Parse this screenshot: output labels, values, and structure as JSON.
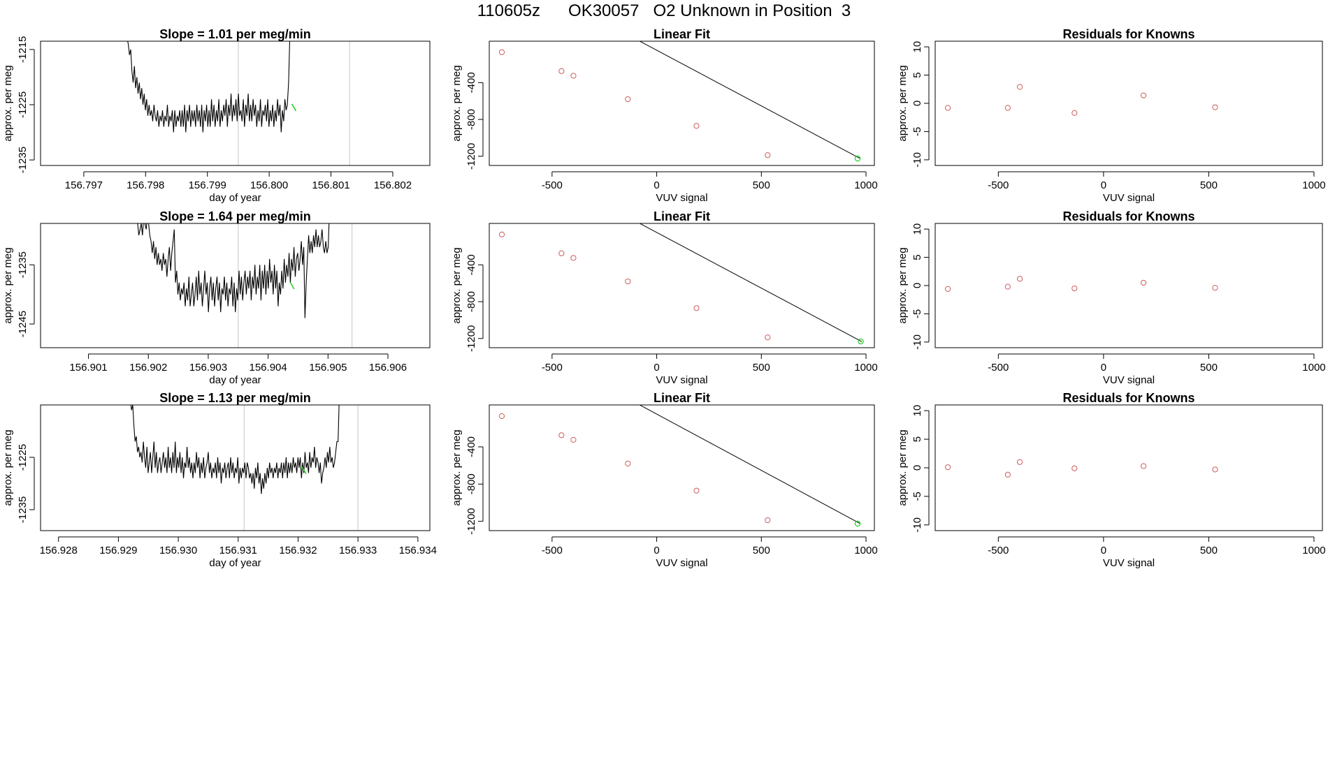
{
  "figure_title": "110605z      OK30057   O2 Unknown in Position  3",
  "colors": {
    "trace": "#000000",
    "marker_known": "#cd5c5c",
    "marker_unknown": "#22cc22",
    "vline": "#cfcfcf"
  },
  "chart_data": [
    {
      "type": "line",
      "title": "Slope =  1.01  per meg/min",
      "xlabel": "day of year",
      "ylabel": "approx. per meg",
      "xlim": [
        156.7963,
        156.8026
      ],
      "ylim": [
        -1236,
        -1213.5
      ],
      "xticks": [
        156.797,
        156.798,
        156.799,
        156.8,
        156.801,
        156.802
      ],
      "xtick_labels": [
        "156.797",
        "156.798",
        "156.799",
        "156.800",
        "156.801",
        "156.802"
      ],
      "yticks": [
        -1215,
        -1225,
        -1235
      ],
      "ytick_labels": [
        "-1215",
        "-1225",
        "-1235"
      ],
      "vlines": [
        156.7995,
        156.8013
      ],
      "unknown_point": {
        "x": 156.8004,
        "y": -1225.5
      },
      "series": [
        {
          "name": "trace",
          "x0": 156.7977,
          "dx": 1.98e-05,
          "values": [
            -1213,
            -1214,
            -1216,
            -1215,
            -1219,
            -1221,
            -1218,
            -1222,
            -1220,
            -1223,
            -1221,
            -1224,
            -1222,
            -1225,
            -1223,
            -1226,
            -1224,
            -1227,
            -1225,
            -1227,
            -1226,
            -1228,
            -1225,
            -1227,
            -1228,
            -1226,
            -1229,
            -1227,
            -1228,
            -1226,
            -1229,
            -1227,
            -1228,
            -1225,
            -1229,
            -1227,
            -1228,
            -1226,
            -1230,
            -1226,
            -1229,
            -1227,
            -1228,
            -1226,
            -1229,
            -1226,
            -1229,
            -1225,
            -1230,
            -1226,
            -1228,
            -1225,
            -1229,
            -1226,
            -1228,
            -1226,
            -1229,
            -1225,
            -1228,
            -1226,
            -1229,
            -1225,
            -1230,
            -1226,
            -1228,
            -1225,
            -1229,
            -1226,
            -1229,
            -1224,
            -1228,
            -1225,
            -1229,
            -1226,
            -1228,
            -1224,
            -1229,
            -1226,
            -1228,
            -1225,
            -1227,
            -1224,
            -1229,
            -1225,
            -1227,
            -1223,
            -1228,
            -1225,
            -1227,
            -1224,
            -1228,
            -1223,
            -1227,
            -1226,
            -1228,
            -1224,
            -1229,
            -1225,
            -1227,
            -1223,
            -1228,
            -1225,
            -1228,
            -1224,
            -1227,
            -1225,
            -1229,
            -1226,
            -1228,
            -1224,
            -1229,
            -1226,
            -1227,
            -1225,
            -1228,
            -1224,
            -1229,
            -1226,
            -1228,
            -1225,
            -1229,
            -1226,
            -1228,
            -1224,
            -1227,
            -1225,
            -1230,
            -1226,
            -1228,
            -1224,
            -1226,
            -1225,
            -1221,
            -1213
          ]
        }
      ]
    },
    {
      "type": "scatter",
      "title": "Linear Fit",
      "xlabel": "VUV signal",
      "ylabel": "approx. per meg",
      "xlim": [
        -800,
        1040
      ],
      "ylim": [
        -1300,
        50
      ],
      "xticks": [
        -500,
        0,
        500,
        1000
      ],
      "xtick_labels": [
        "-500",
        "0",
        "500",
        "1000"
      ],
      "yticks": [
        -400,
        -800,
        -1200
      ],
      "ytick_labels": [
        "-400",
        "-800",
        "-1200"
      ],
      "fit_line": {
        "x": [
          -740,
          970
        ],
        "y": 0,
        "slope": -1.21,
        "intercept": -48
      },
      "known_points": {
        "x": [
          -740,
          -455,
          -398,
          -138,
          190,
          530
        ],
        "y": [
          -70,
          -275,
          -325,
          -580,
          -870,
          -1188
        ]
      },
      "unknown_point": {
        "x": 960,
        "y": -1225
      }
    },
    {
      "type": "scatter",
      "title": "Residuals for Knowns",
      "xlabel": "VUV signal",
      "ylabel": "approx. per meg",
      "xlim": [
        -800,
        1040
      ],
      "ylim": [
        -11,
        11
      ],
      "xticks": [
        -500,
        0,
        500,
        1000
      ],
      "xtick_labels": [
        "-500",
        "0",
        "500",
        "1000"
      ],
      "yticks": [
        10,
        5,
        0,
        -5,
        -10
      ],
      "ytick_labels": [
        "10",
        "5",
        "0",
        "-5",
        "-10"
      ],
      "points": {
        "x": [
          -740,
          -455,
          -398,
          -138,
          190,
          530
        ],
        "y": [
          -0.8,
          -0.8,
          2.9,
          -1.7,
          1.4,
          -0.7
        ]
      }
    },
    {
      "type": "line",
      "title": "Slope =  1.64  per meg/min",
      "xlabel": "day of year",
      "ylabel": "approx. per meg",
      "xlim": [
        156.9002,
        156.9067
      ],
      "ylim": [
        -1249,
        -1228
      ],
      "xticks": [
        156.901,
        156.902,
        156.903,
        156.904,
        156.905,
        156.906
      ],
      "xtick_labels": [
        "156.901",
        "156.902",
        "156.903",
        "156.904",
        "156.905",
        "156.906"
      ],
      "yticks": [
        -1235,
        -1245
      ],
      "ytick_labels": [
        "-1235",
        "-1245"
      ],
      "vlines": [
        156.9035,
        156.9054
      ],
      "unknown_point": {
        "x": 156.9044,
        "y": -1238.5
      },
      "series": [
        {
          "name": "trace",
          "x0": 156.9018,
          "dx": 2.04e-05,
          "values": [
            -1227,
            -1228,
            -1230,
            -1229,
            -1228,
            -1230,
            -1227,
            -1228,
            -1229,
            -1227,
            -1228,
            -1230,
            -1231,
            -1233,
            -1231,
            -1234,
            -1232,
            -1235,
            -1233,
            -1235,
            -1234,
            -1236,
            -1233,
            -1235,
            -1234,
            -1237,
            -1234,
            -1232,
            -1236,
            -1233,
            -1231,
            -1229,
            -1238,
            -1236,
            -1240,
            -1238,
            -1241,
            -1239,
            -1240,
            -1238,
            -1242,
            -1239,
            -1241,
            -1237,
            -1242,
            -1240,
            -1238,
            -1242,
            -1240,
            -1237,
            -1241,
            -1236,
            -1240,
            -1238,
            -1242,
            -1239,
            -1236,
            -1240,
            -1238,
            -1243,
            -1239,
            -1237,
            -1241,
            -1238,
            -1242,
            -1239,
            -1237,
            -1241,
            -1238,
            -1243,
            -1239,
            -1240,
            -1237,
            -1241,
            -1238,
            -1242,
            -1239,
            -1240,
            -1237,
            -1242,
            -1238,
            -1243,
            -1239,
            -1241,
            -1236,
            -1240,
            -1237,
            -1241,
            -1238,
            -1236,
            -1240,
            -1237,
            -1239,
            -1236,
            -1241,
            -1237,
            -1239,
            -1235,
            -1240,
            -1237,
            -1239,
            -1235,
            -1241,
            -1236,
            -1239,
            -1235,
            -1240,
            -1236,
            -1239,
            -1234,
            -1238,
            -1236,
            -1240,
            -1235,
            -1239,
            -1236,
            -1242,
            -1238,
            -1240,
            -1236,
            -1239,
            -1234,
            -1238,
            -1235,
            -1237,
            -1233,
            -1238,
            -1234,
            -1236,
            -1232,
            -1237,
            -1234,
            -1233,
            -1236,
            -1234,
            -1231,
            -1235,
            -1232,
            -1244,
            -1238,
            -1234,
            -1230,
            -1233,
            -1231,
            -1233,
            -1230,
            -1232,
            -1229,
            -1232,
            -1230,
            -1232,
            -1231,
            -1229,
            -1232,
            -1233,
            -1231,
            -1233,
            -1232,
            -1226
          ]
        }
      ]
    },
    {
      "type": "scatter",
      "title": "Linear Fit",
      "xlabel": "VUV signal",
      "ylabel": "approx. per meg",
      "xlim": [
        -800,
        1040
      ],
      "ylim": [
        -1300,
        50
      ],
      "xticks": [
        -500,
        0,
        500,
        1000
      ],
      "xtick_labels": [
        "-500",
        "0",
        "500",
        "1000"
      ],
      "yticks": [
        -400,
        -800,
        -1200
      ],
      "ytick_labels": [
        "-400",
        "-800",
        "-1200"
      ],
      "fit_line": {
        "x": [
          -740,
          980
        ],
        "y": 0,
        "slope": -1.21,
        "intercept": -48
      },
      "known_points": {
        "x": [
          -740,
          -455,
          -398,
          -138,
          190,
          530
        ],
        "y": [
          -70,
          -275,
          -325,
          -580,
          -870,
          -1188
        ]
      },
      "unknown_point": {
        "x": 975,
        "y": -1232
      }
    },
    {
      "type": "scatter",
      "title": "Residuals for Knowns",
      "xlabel": "VUV signal",
      "ylabel": "approx. per meg",
      "xlim": [
        -800,
        1040
      ],
      "ylim": [
        -11,
        11
      ],
      "xticks": [
        -500,
        0,
        500,
        1000
      ],
      "xtick_labels": [
        "-500",
        "0",
        "500",
        "1000"
      ],
      "yticks": [
        10,
        5,
        0,
        -5,
        -10
      ],
      "ytick_labels": [
        "10",
        "5",
        "0",
        "-5",
        "-10"
      ],
      "points": {
        "x": [
          -740,
          -455,
          -398,
          -138,
          190,
          530
        ],
        "y": [
          -0.6,
          -0.2,
          1.2,
          -0.5,
          0.5,
          -0.4
        ]
      }
    },
    {
      "type": "line",
      "title": "Slope =  1.13  per meg/min",
      "xlabel": "day of year",
      "ylabel": "approx. per meg",
      "xlim": [
        156.9277,
        156.9342
      ],
      "ylim": [
        -1239,
        -1215
      ],
      "xticks": [
        156.928,
        156.929,
        156.93,
        156.931,
        156.932,
        156.933,
        156.934
      ],
      "xtick_labels": [
        "156.928",
        "156.929",
        "156.930",
        "156.931",
        "156.932",
        "156.933",
        "156.934"
      ],
      "yticks": [
        -1225,
        -1235
      ],
      "ytick_labels": [
        "-1225",
        "-1235"
      ],
      "vlines": [
        156.9311,
        156.933
      ],
      "unknown_point": {
        "x": 156.9321,
        "y": -1227.5
      },
      "series": [
        {
          "name": "trace",
          "x0": 156.9292,
          "dx": 1.97e-05,
          "values": [
            -1214,
            -1216,
            -1215,
            -1219,
            -1222,
            -1221,
            -1224,
            -1223,
            -1225,
            -1224,
            -1226,
            -1222,
            -1225,
            -1227,
            -1223,
            -1228,
            -1226,
            -1224,
            -1228,
            -1225,
            -1222,
            -1227,
            -1224,
            -1228,
            -1226,
            -1225,
            -1228,
            -1226,
            -1224,
            -1227,
            -1225,
            -1228,
            -1223,
            -1227,
            -1225,
            -1228,
            -1224,
            -1227,
            -1222,
            -1228,
            -1225,
            -1227,
            -1224,
            -1228,
            -1225,
            -1229,
            -1226,
            -1227,
            -1223,
            -1227,
            -1225,
            -1228,
            -1226,
            -1229,
            -1226,
            -1228,
            -1224,
            -1227,
            -1225,
            -1229,
            -1226,
            -1228,
            -1225,
            -1229,
            -1227,
            -1226,
            -1224,
            -1228,
            -1226,
            -1229,
            -1227,
            -1228,
            -1226,
            -1229,
            -1225,
            -1228,
            -1226,
            -1230,
            -1227,
            -1228,
            -1226,
            -1229,
            -1227,
            -1226,
            -1229,
            -1225,
            -1228,
            -1226,
            -1229,
            -1227,
            -1228,
            -1225,
            -1230,
            -1227,
            -1229,
            -1227,
            -1228,
            -1226,
            -1229,
            -1226,
            -1227,
            -1229,
            -1228,
            -1230,
            -1228,
            -1231,
            -1227,
            -1229,
            -1226,
            -1230,
            -1228,
            -1232,
            -1229,
            -1231,
            -1228,
            -1230,
            -1227,
            -1229,
            -1226,
            -1228,
            -1227,
            -1229,
            -1227,
            -1228,
            -1226,
            -1229,
            -1227,
            -1228,
            -1226,
            -1229,
            -1226,
            -1228,
            -1225,
            -1229,
            -1226,
            -1228,
            -1226,
            -1228,
            -1225,
            -1227,
            -1226,
            -1228,
            -1225,
            -1227,
            -1225,
            -1229,
            -1226,
            -1228,
            -1224,
            -1227,
            -1226,
            -1228,
            -1224,
            -1227,
            -1225,
            -1226,
            -1223,
            -1227,
            -1225,
            -1226,
            -1228,
            -1226,
            -1230,
            -1228,
            -1227,
            -1225,
            -1227,
            -1224,
            -1226,
            -1223,
            -1226,
            -1225,
            -1227,
            -1226,
            -1224,
            -1222,
            -1222,
            -1214
          ]
        }
      ]
    },
    {
      "type": "scatter",
      "title": "Linear Fit",
      "xlabel": "VUV signal",
      "ylabel": "approx. per meg",
      "xlim": [
        -800,
        1040
      ],
      "ylim": [
        -1300,
        50
      ],
      "xticks": [
        -500,
        0,
        500,
        1000
      ],
      "xtick_labels": [
        "-500",
        "0",
        "500",
        "1000"
      ],
      "yticks": [
        -400,
        -800,
        -1200
      ],
      "ytick_labels": [
        "-400",
        "-800",
        "-1200"
      ],
      "fit_line": {
        "x": [
          -740,
          970
        ],
        "y": 0,
        "slope": -1.21,
        "intercept": -48
      },
      "known_points": {
        "x": [
          -740,
          -455,
          -398,
          -138,
          190,
          530
        ],
        "y": [
          -70,
          -275,
          -325,
          -580,
          -870,
          -1188
        ]
      },
      "unknown_point": {
        "x": 960,
        "y": -1225
      }
    },
    {
      "type": "scatter",
      "title": "Residuals for Knowns",
      "xlabel": "VUV signal",
      "ylabel": "approx. per meg",
      "xlim": [
        -800,
        1040
      ],
      "ylim": [
        -11,
        11
      ],
      "xticks": [
        -500,
        0,
        500,
        1000
      ],
      "xtick_labels": [
        "-500",
        "0",
        "500",
        "1000"
      ],
      "yticks": [
        10,
        5,
        0,
        -5,
        -10
      ],
      "ytick_labels": [
        "10",
        "5",
        "0",
        "-5",
        "-10"
      ],
      "points": {
        "x": [
          -740,
          -455,
          -398,
          -138,
          190,
          530
        ],
        "y": [
          0.1,
          -1.2,
          1.0,
          -0.1,
          0.3,
          -0.3
        ]
      }
    }
  ]
}
